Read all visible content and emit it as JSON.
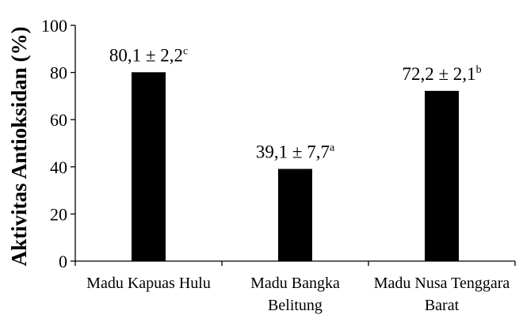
{
  "chart_data": {
    "type": "bar",
    "title": "",
    "xlabel": "",
    "ylabel": "Aktivitas Antioksidan (%)",
    "ylim": [
      0,
      100
    ],
    "yticks": [
      0,
      20,
      40,
      60,
      80,
      100
    ],
    "grid": false,
    "legend": "none",
    "bar_color": "#000000",
    "categories": [
      [
        "Madu Kapuas Hulu"
      ],
      [
        "Madu Bangka",
        "Belitung"
      ],
      [
        "Madu Nusa Tenggara",
        "Barat"
      ]
    ],
    "values": [
      80.1,
      39.1,
      72.2
    ],
    "data_labels": [
      {
        "text": "80,1 ± 2,2",
        "sup": "c"
      },
      {
        "text": "39,1 ± 7,7",
        "sup": "a"
      },
      {
        "text": "72,2 ± 2,1",
        "sup": "b"
      }
    ]
  }
}
